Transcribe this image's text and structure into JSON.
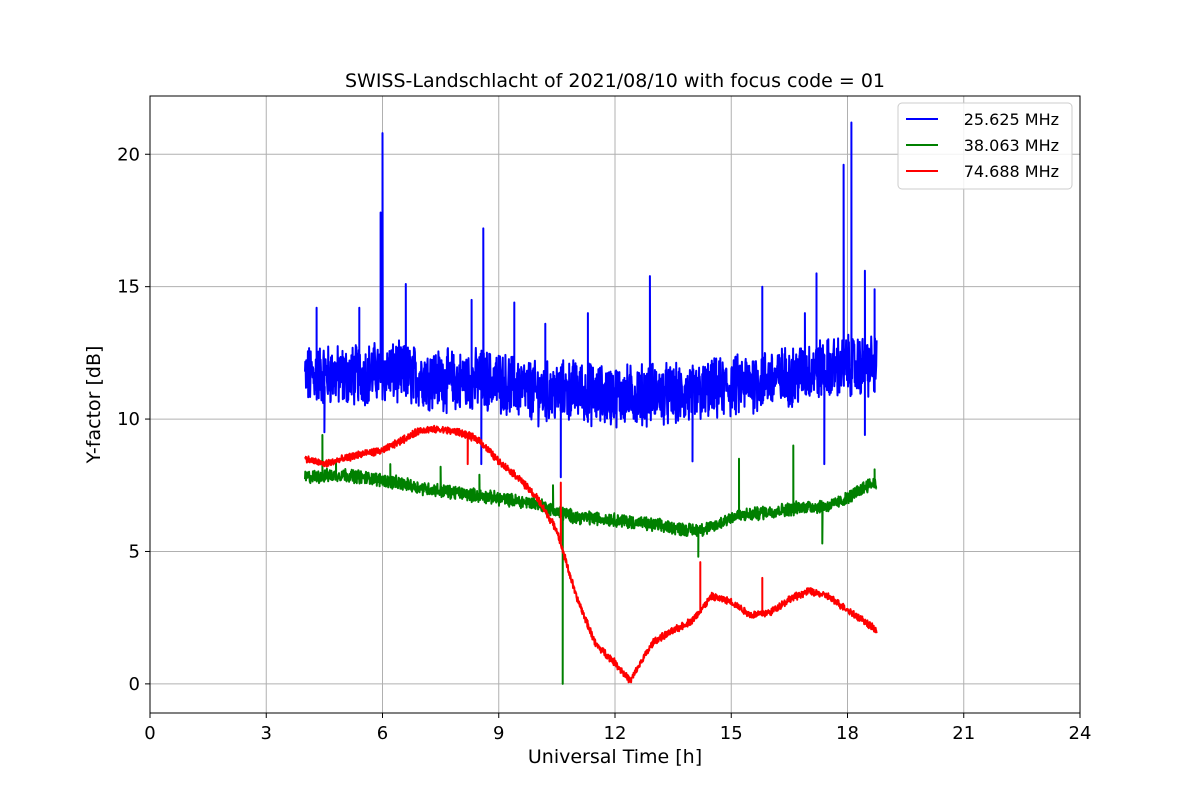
{
  "chart_data": {
    "type": "line",
    "title": "SWISS-Landschlacht of 2021/08/10 with focus code = 01",
    "xlabel": "Universal Time [h]",
    "ylabel": "Y-factor [dB]",
    "xlim": [
      0,
      24
    ],
    "ylim": [
      -1.1,
      22.2
    ],
    "xticks": [
      0,
      3,
      6,
      9,
      12,
      15,
      18,
      21,
      24
    ],
    "yticks": [
      0,
      5,
      10,
      15,
      20
    ],
    "grid": true,
    "legend_position": "top-right",
    "series": [
      {
        "name": "25.625 MHz",
        "color": "#0000ff",
        "style": "noisy",
        "x": [
          4.0,
          4.5,
          5.0,
          5.5,
          6.0,
          6.5,
          7.0,
          7.5,
          8.0,
          8.5,
          9.0,
          9.5,
          10.0,
          10.5,
          11.0,
          11.5,
          12.0,
          12.5,
          13.0,
          13.5,
          14.0,
          14.5,
          15.0,
          15.5,
          16.0,
          16.5,
          17.0,
          17.5,
          18.0,
          18.5,
          18.75
        ],
        "y": [
          11.6,
          11.7,
          11.6,
          11.7,
          11.8,
          11.7,
          11.6,
          11.5,
          11.4,
          11.5,
          11.4,
          11.2,
          11.0,
          11.0,
          11.1,
          10.9,
          10.9,
          10.9,
          11.0,
          10.9,
          10.9,
          11.1,
          11.2,
          11.4,
          11.5,
          11.6,
          11.8,
          11.9,
          12.0,
          12.0,
          12.0
        ],
        "spread": 1.0,
        "spikes": [
          [
            4.3,
            14.2
          ],
          [
            4.5,
            9.5
          ],
          [
            5.4,
            14.2
          ],
          [
            5.95,
            17.8
          ],
          [
            6.0,
            20.8
          ],
          [
            6.6,
            15.1
          ],
          [
            8.3,
            14.5
          ],
          [
            8.6,
            17.2
          ],
          [
            8.55,
            8.3
          ],
          [
            9.4,
            14.4
          ],
          [
            10.2,
            13.6
          ],
          [
            10.6,
            7.8
          ],
          [
            11.3,
            14.0
          ],
          [
            12.9,
            15.4
          ],
          [
            14.0,
            8.4
          ],
          [
            15.8,
            15.0
          ],
          [
            16.9,
            14.0
          ],
          [
            17.2,
            15.5
          ],
          [
            17.4,
            8.3
          ],
          [
            17.9,
            19.6
          ],
          [
            18.1,
            21.2
          ],
          [
            18.45,
            15.6
          ],
          [
            18.45,
            9.4
          ],
          [
            18.7,
            14.9
          ]
        ]
      },
      {
        "name": "38.063 MHz",
        "color": "#008000",
        "style": "noisy",
        "x": [
          4.0,
          5.0,
          6.0,
          7.0,
          8.0,
          9.0,
          10.0,
          10.5,
          11.0,
          12.0,
          13.0,
          14.0,
          14.5,
          15.0,
          16.0,
          17.0,
          17.5,
          18.0,
          18.5,
          18.75
        ],
        "y": [
          7.8,
          7.9,
          7.7,
          7.4,
          7.2,
          7.0,
          6.8,
          6.5,
          6.3,
          6.2,
          6.0,
          5.8,
          5.9,
          6.3,
          6.5,
          6.7,
          6.7,
          7.0,
          7.5,
          7.6
        ],
        "spread": 0.22,
        "spikes": [
          [
            4.45,
            9.4
          ],
          [
            4.8,
            8.4
          ],
          [
            6.2,
            8.3
          ],
          [
            7.5,
            8.2
          ],
          [
            8.5,
            7.9
          ],
          [
            10.4,
            7.5
          ],
          [
            10.65,
            0.0
          ],
          [
            14.15,
            4.8
          ],
          [
            15.2,
            8.5
          ],
          [
            16.6,
            9.0
          ],
          [
            17.35,
            5.3
          ],
          [
            18.7,
            8.1
          ]
        ]
      },
      {
        "name": "74.688 MHz",
        "color": "#ff0000",
        "style": "noisy",
        "x": [
          4.0,
          4.5,
          5.0,
          5.5,
          6.0,
          6.5,
          7.0,
          7.5,
          8.0,
          8.5,
          9.0,
          9.5,
          10.0,
          10.5,
          11.0,
          11.5,
          12.0,
          12.4,
          12.7,
          13.0,
          13.5,
          14.0,
          14.5,
          15.0,
          15.5,
          16.0,
          16.5,
          17.0,
          17.5,
          18.0,
          18.5,
          18.75
        ],
        "y": [
          8.5,
          8.3,
          8.5,
          8.7,
          8.8,
          9.2,
          9.6,
          9.6,
          9.5,
          9.2,
          8.4,
          7.8,
          7.0,
          5.8,
          3.3,
          1.5,
          0.8,
          0.1,
          0.9,
          1.6,
          2.0,
          2.4,
          3.3,
          3.1,
          2.6,
          2.7,
          3.2,
          3.5,
          3.3,
          2.8,
          2.3,
          2.0
        ],
        "spread": 0.12,
        "spikes": [
          [
            8.2,
            8.3
          ],
          [
            10.6,
            7.6
          ],
          [
            14.2,
            4.6
          ],
          [
            15.8,
            4.0
          ]
        ]
      }
    ]
  }
}
